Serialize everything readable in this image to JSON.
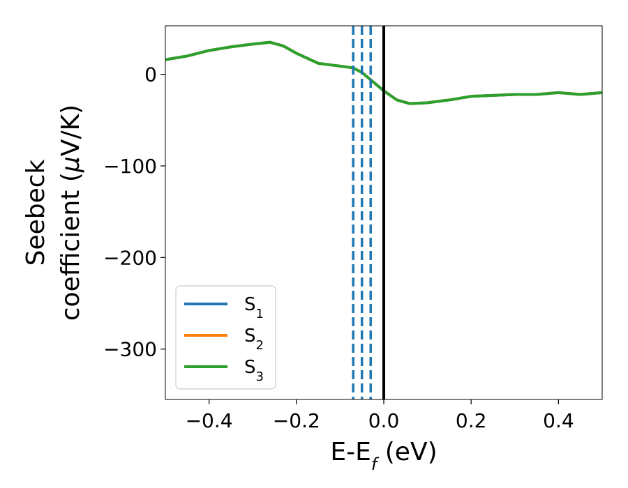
{
  "chart_data": {
    "type": "line",
    "xlabel": {
      "base": "E-E",
      "sub": "f",
      "rest": " (eV)"
    },
    "ylabel": {
      "line1": "Seebeck",
      "line2_prefix": "coefficient  (",
      "mu": "μ",
      "line2_suffix": "V/K)"
    },
    "xlim": [
      -0.5,
      0.5
    ],
    "ylim": [
      -355,
      53
    ],
    "xticks": [
      -0.4,
      -0.2,
      0.0,
      0.2,
      0.4
    ],
    "xtick_labels": [
      "−0.4",
      "−0.2",
      "0.0",
      "0.2",
      "0.4"
    ],
    "yticks": [
      0,
      -100,
      -200,
      -300
    ],
    "ytick_labels": [
      "0",
      "−100",
      "−200",
      "−300"
    ],
    "grid": false,
    "legend_position": "bottom-left",
    "series": [
      {
        "name": "S",
        "sub": "1",
        "color": "#1f77b4",
        "x": [
          -0.5,
          -0.45,
          -0.4,
          -0.35,
          -0.3,
          -0.26,
          -0.23,
          -0.2,
          -0.15,
          -0.1,
          -0.07,
          -0.05,
          -0.02,
          0.0,
          0.03,
          0.06,
          0.1,
          0.15,
          0.2,
          0.25,
          0.3,
          0.35,
          0.4,
          0.45,
          0.5
        ],
        "y": [
          16,
          20,
          26,
          30,
          33,
          35,
          31,
          23,
          12,
          9,
          7,
          2,
          -10,
          -18,
          -28,
          -32,
          -31,
          -28,
          -24,
          -23,
          -22,
          -22,
          -20,
          -22,
          -20
        ]
      },
      {
        "name": "S",
        "sub": "2",
        "color": "#ff7f0e",
        "x": [
          -0.5,
          -0.45,
          -0.4,
          -0.35,
          -0.3,
          -0.26,
          -0.23,
          -0.2,
          -0.15,
          -0.1,
          -0.07,
          -0.05,
          -0.02,
          0.0,
          0.03,
          0.06,
          0.1,
          0.15,
          0.2,
          0.25,
          0.3,
          0.35,
          0.4,
          0.45,
          0.5
        ],
        "y": [
          16,
          20,
          26,
          30,
          33,
          35,
          31,
          23,
          12,
          9,
          7,
          2,
          -10,
          -18,
          -28,
          -32,
          -31,
          -28,
          -24,
          -23,
          -22,
          -22,
          -20,
          -22,
          -20
        ]
      },
      {
        "name": "S",
        "sub": "3",
        "color": "#2ca02c",
        "x": [
          -0.5,
          -0.45,
          -0.4,
          -0.35,
          -0.3,
          -0.26,
          -0.23,
          -0.2,
          -0.15,
          -0.1,
          -0.07,
          -0.05,
          -0.02,
          0.0,
          0.03,
          0.06,
          0.1,
          0.15,
          0.2,
          0.25,
          0.3,
          0.35,
          0.4,
          0.45,
          0.5
        ],
        "y": [
          16,
          20,
          26,
          30,
          33,
          35,
          31,
          23,
          12,
          9,
          7,
          2,
          -10,
          -18,
          -28,
          -32,
          -31,
          -28,
          -24,
          -23,
          -22,
          -22,
          -20,
          -22,
          -20
        ]
      }
    ],
    "vlines": [
      {
        "x": -0.07,
        "style": "dashed",
        "color": "#1f77b4"
      },
      {
        "x": -0.05,
        "style": "dashed",
        "color": "#1f77b4"
      },
      {
        "x": -0.03,
        "style": "dashed",
        "color": "#1f77b4"
      },
      {
        "x": 0.0,
        "style": "solid",
        "color": "#000000"
      }
    ]
  }
}
